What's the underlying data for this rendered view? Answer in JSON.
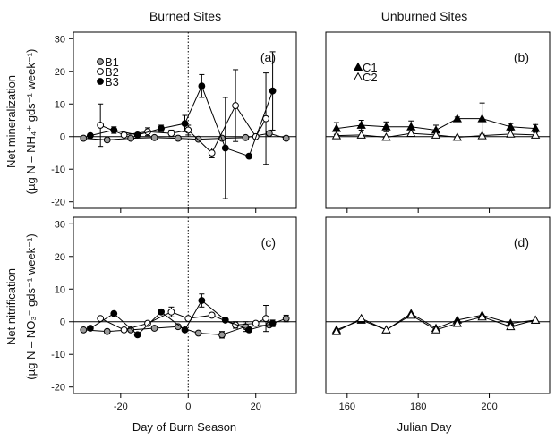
{
  "column_titles": [
    "Burned Sites",
    "Unburned Sites"
  ],
  "y_axis_labels": {
    "top_line1": "Net mineralization",
    "top_line2": "(µg N – NH₄⁺ gds⁻¹ week⁻¹)",
    "bottom_line1": "Net nitrification",
    "bottom_line2": "(µg N – NO₃⁻ gds⁻¹ week⁻¹)"
  },
  "x_axis_labels": {
    "left": "Day of Burn Season",
    "right": "Julian Day"
  },
  "chart_data": [
    {
      "panel": "(a)",
      "type": "line",
      "xlim": [
        -34,
        32
      ],
      "ylim": [
        -22,
        32
      ],
      "yticks": [
        -20,
        -10,
        0,
        10,
        20,
        30
      ],
      "xticks": [
        -20,
        0,
        20
      ],
      "reference_vline": 0,
      "reference_hline": 0,
      "legend": [
        "B1",
        "B2",
        "B3"
      ],
      "series": [
        {
          "name": "B1",
          "marker": "circle-gray",
          "x": [
            -31,
            -24,
            -17,
            -10,
            -3,
            3,
            10,
            17,
            24,
            29
          ],
          "y": [
            -0.5,
            -1.0,
            -0.5,
            -0.3,
            -0.5,
            -0.8,
            -0.5,
            -0.3,
            1.0,
            -0.5
          ],
          "err": [
            0,
            0,
            0,
            0,
            0,
            0,
            0,
            0,
            0,
            0
          ]
        },
        {
          "name": "B2",
          "marker": "circle-open",
          "x": [
            -26,
            -19,
            -12,
            -5,
            0,
            7,
            14,
            20,
            23
          ],
          "y": [
            3.5,
            0.5,
            1.5,
            1.0,
            2.0,
            -5.0,
            9.5,
            0.0,
            5.5
          ],
          "err": [
            6.5,
            0,
            1.2,
            1.0,
            1.5,
            1.5,
            11,
            0,
            14
          ]
        },
        {
          "name": "B3",
          "marker": "circle-filled",
          "x": [
            -29,
            -22,
            -15,
            -8,
            -1,
            4,
            11,
            18,
            25
          ],
          "y": [
            0.3,
            2.0,
            0.5,
            2.5,
            4.0,
            15.5,
            -3.5,
            -6.0,
            14.0
          ],
          "err": [
            0,
            1.0,
            0,
            1.0,
            2.5,
            3.5,
            15.5,
            0,
            12
          ]
        }
      ]
    },
    {
      "panel": "(b)",
      "type": "line",
      "xlim": [
        154,
        217
      ],
      "ylim": [
        -22,
        32
      ],
      "xticks": [
        160,
        180,
        200
      ],
      "reference_hline": 0,
      "legend": [
        "C1",
        "C2"
      ],
      "series": [
        {
          "name": "C1",
          "marker": "triangle-filled",
          "x": [
            157,
            164,
            171,
            178,
            185,
            191,
            198,
            206,
            213
          ],
          "y": [
            2.5,
            3.5,
            3.0,
            3.0,
            2.0,
            5.5,
            5.5,
            3.0,
            2.5
          ],
          "err": [
            1.8,
            1.5,
            1.5,
            1.8,
            1.5,
            0.5,
            4.8,
            1.0,
            1.2
          ]
        },
        {
          "name": "C2",
          "marker": "triangle-open",
          "x": [
            157,
            164,
            171,
            178,
            185,
            191,
            198,
            206,
            213
          ],
          "y": [
            0.3,
            0.5,
            -0.2,
            1.0,
            0.5,
            -0.2,
            0.3,
            0.8,
            0.5
          ],
          "err": [
            0,
            0,
            0,
            0,
            0,
            0,
            0,
            0,
            0
          ]
        }
      ]
    },
    {
      "panel": "(c)",
      "type": "line",
      "xlim": [
        -34,
        32
      ],
      "ylim": [
        -22,
        32
      ],
      "yticks": [
        -20,
        -10,
        0,
        10,
        20,
        30
      ],
      "xticks": [
        -20,
        0,
        20
      ],
      "reference_vline": 0,
      "reference_hline": 0,
      "series": [
        {
          "name": "B1",
          "marker": "circle-gray",
          "x": [
            -31,
            -24,
            -17,
            -10,
            -3,
            3,
            10,
            17,
            24,
            29
          ],
          "y": [
            -2.5,
            -3.0,
            -2.5,
            -2.0,
            -1.5,
            -3.5,
            -4.0,
            -1.5,
            -1.0,
            1.0
          ],
          "err": [
            0,
            0,
            0,
            0,
            0,
            0,
            1.0,
            1.5,
            0,
            1.0
          ]
        },
        {
          "name": "B2",
          "marker": "circle-open",
          "x": [
            -26,
            -19,
            -12,
            -5,
            0,
            7,
            14,
            20,
            23
          ],
          "y": [
            1.0,
            -2.5,
            -0.5,
            3.0,
            1.0,
            2.0,
            -1.0,
            -0.5,
            1.0
          ],
          "err": [
            0,
            0,
            0,
            1.5,
            0,
            0,
            1.0,
            0,
            4.0
          ]
        },
        {
          "name": "B3",
          "marker": "circle-filled",
          "x": [
            -29,
            -22,
            -15,
            -8,
            -1,
            4,
            11,
            18,
            25
          ],
          "y": [
            -2.0,
            2.5,
            -4.0,
            3.0,
            -2.5,
            6.5,
            0.5,
            -2.5,
            -0.5
          ],
          "err": [
            0,
            0,
            0,
            0,
            0,
            2.0,
            0,
            0,
            1.0
          ]
        }
      ]
    },
    {
      "panel": "(d)",
      "type": "line",
      "xlim": [
        154,
        217
      ],
      "ylim": [
        -22,
        32
      ],
      "xticks": [
        160,
        180,
        200
      ],
      "reference_hline": 0,
      "series": [
        {
          "name": "C1",
          "marker": "triangle-filled",
          "x": [
            157,
            164,
            171,
            178,
            185,
            191,
            198,
            206,
            213
          ],
          "y": [
            -2.5,
            0.5,
            -2.5,
            2.5,
            -2.0,
            0.5,
            2.0,
            -0.5,
            0.5
          ],
          "err": [
            0,
            0,
            0,
            0,
            0,
            0,
            0,
            0,
            0
          ]
        },
        {
          "name": "C2",
          "marker": "triangle-open",
          "x": [
            157,
            164,
            171,
            178,
            185,
            191,
            198,
            206,
            213
          ],
          "y": [
            -3.0,
            1.0,
            -2.5,
            2.0,
            -2.5,
            -0.5,
            1.5,
            -1.5,
            0.5
          ],
          "err": [
            0,
            0,
            0,
            0,
            0,
            0,
            0,
            0,
            0
          ]
        }
      ]
    }
  ]
}
